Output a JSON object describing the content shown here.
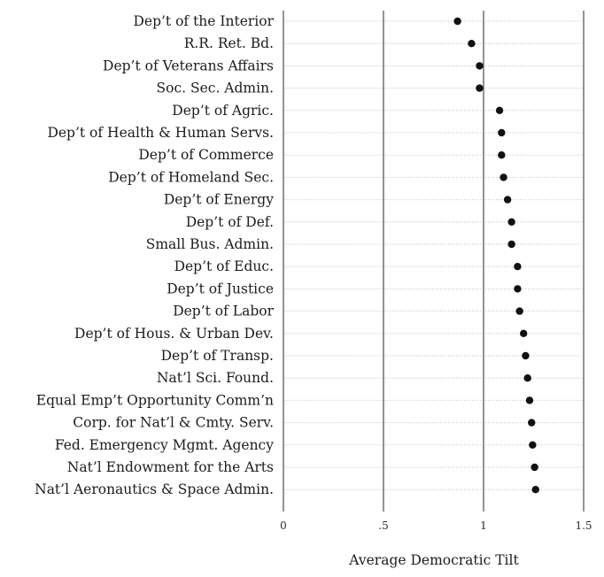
{
  "chart_data": {
    "type": "scatter",
    "title": "",
    "xlabel": "Average Democratic Tilt",
    "ylabel": "",
    "xlim": [
      0,
      1.5
    ],
    "x_ticks": [
      {
        "value": 0,
        "label": "0"
      },
      {
        "value": 0.5,
        "label": ".5"
      },
      {
        "value": 1,
        "label": "1"
      },
      {
        "value": 1.5,
        "label": "1.5"
      }
    ],
    "grid": true,
    "legend": "none",
    "categories": [
      "Dep’t of the Interior",
      "R.R. Ret. Bd.",
      "Dep’t of Veterans Affairs",
      "Soc. Sec. Admin.",
      "Dep’t of Agric.",
      "Dep’t of Health & Human Servs.",
      "Dep’t of Commerce",
      "Dep’t of Homeland Sec.",
      "Dep’t of Energy",
      "Dep’t of Def.",
      "Small Bus. Admin.",
      "Dep’t of Educ.",
      "Dep’t of Justice",
      "Dep’t of Labor",
      "Dep’t of Hous. & Urban Dev.",
      "Dep’t of Transp.",
      "Nat’l Sci. Found.",
      "Equal Emp’t Opportunity Comm’n",
      "Corp. for Nat’l & Cmty. Serv.",
      "Fed. Emergency Mgmt. Agency",
      "Nat’l Endowment for the Arts",
      "Nat’l Aeronautics & Space Admin."
    ],
    "values": [
      0.87,
      0.94,
      0.98,
      0.98,
      1.08,
      1.09,
      1.09,
      1.1,
      1.12,
      1.14,
      1.14,
      1.17,
      1.17,
      1.18,
      1.2,
      1.21,
      1.22,
      1.23,
      1.24,
      1.245,
      1.255,
      1.26
    ],
    "marker_color": "#111111",
    "gridline_color": "#666666",
    "row_line_color": "#d9c9cc"
  }
}
